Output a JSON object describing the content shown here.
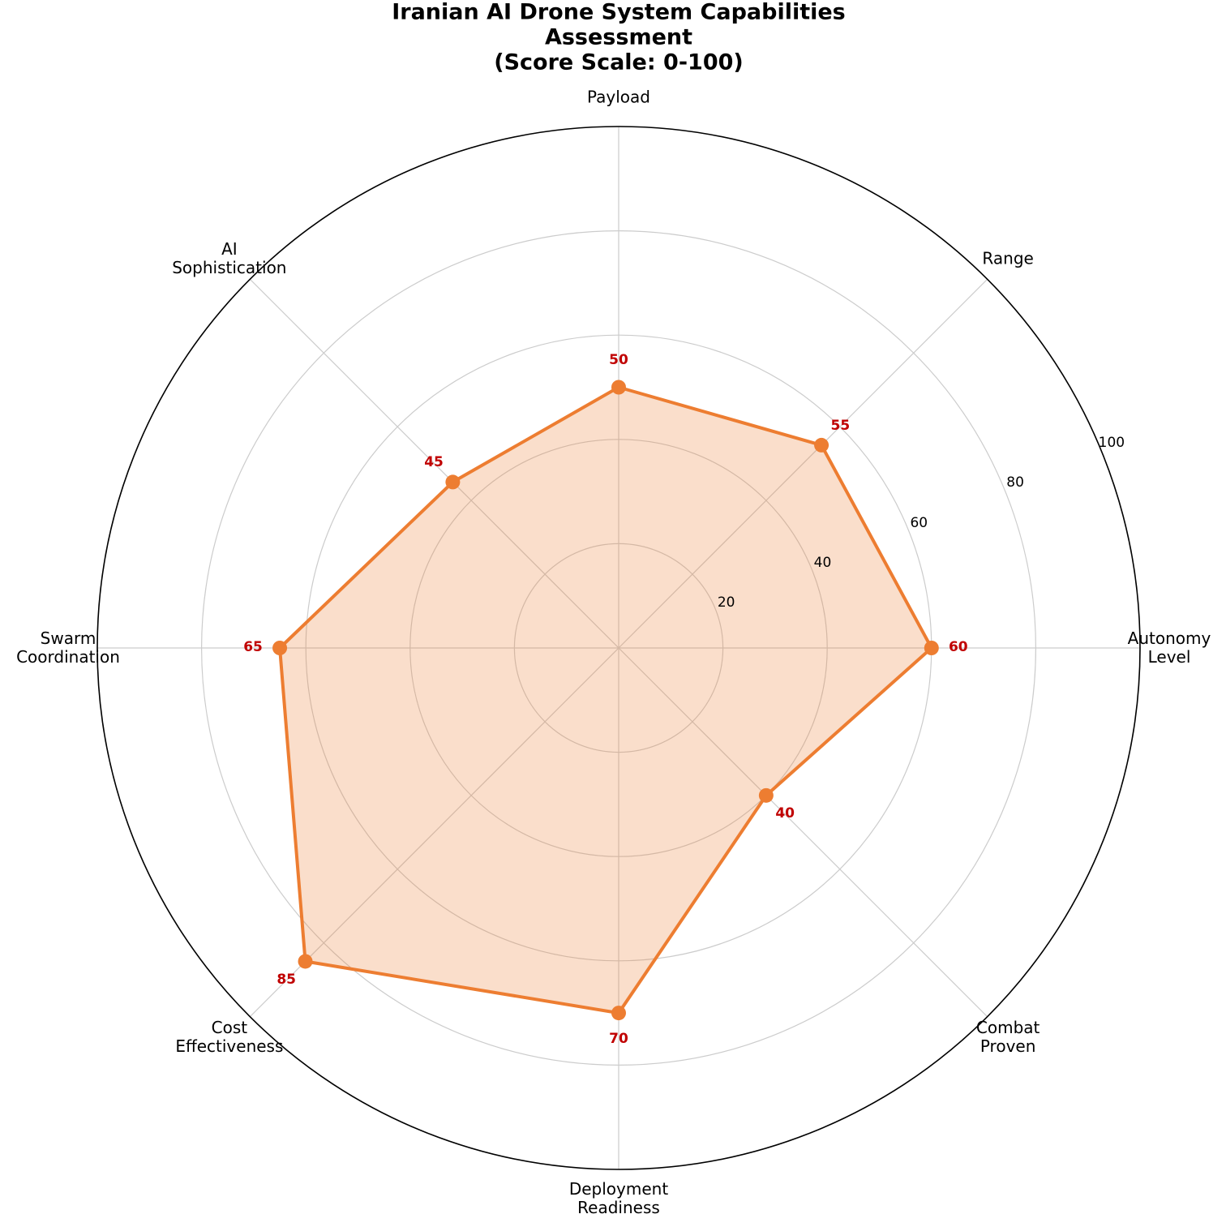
{
  "chart_data": {
    "type": "radar",
    "title": "Iranian AI Drone System Capabilities Assessment\n(Score Scale: 0-100)",
    "categories": [
      "Autonomy\nLevel",
      "Range",
      "Payload",
      "AI\nSophistication",
      "Swarm\nCoordination",
      "Cost\nEffectiveness",
      "Deployment\nReadiness",
      "Combat\nProven"
    ],
    "values": [
      60,
      55,
      50,
      45,
      65,
      85,
      70,
      40
    ],
    "color": "#ed7d31",
    "rlim": [
      0,
      100
    ],
    "rticks": [
      20,
      40,
      60,
      80,
      100
    ],
    "grid": true
  }
}
